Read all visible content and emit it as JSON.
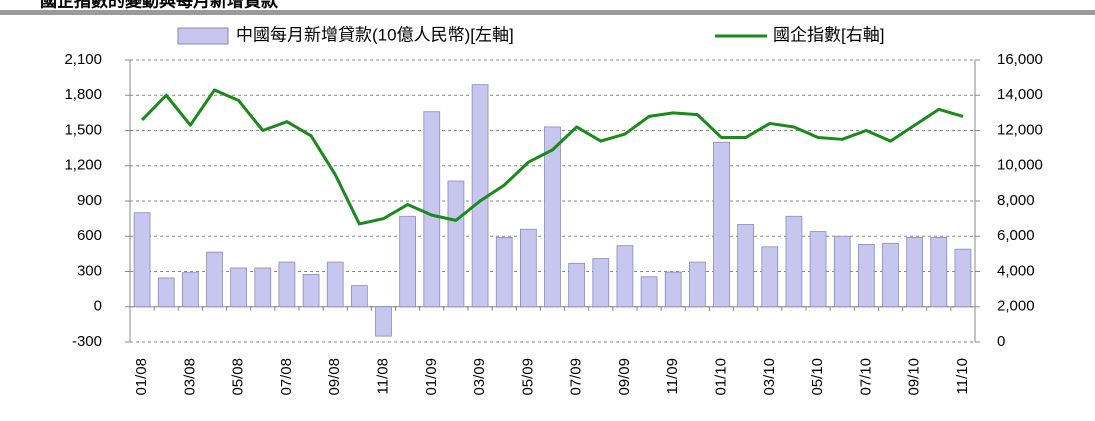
{
  "chart_data": {
    "type": "bar_line",
    "title": "國企指數的變動與每月新增貸款",
    "categories": [
      "01/08",
      null,
      "03/08",
      null,
      "05/08",
      null,
      "07/08",
      null,
      "09/08",
      null,
      "11/08",
      null,
      "01/09",
      null,
      "03/09",
      null,
      "05/09",
      null,
      "07/09",
      null,
      "09/09",
      null,
      "11/09",
      null,
      "01/10",
      null,
      "03/10",
      null,
      "05/10",
      null,
      "07/10",
      null,
      "09/10",
      null,
      "11/10"
    ],
    "series": [
      {
        "name": "中國每月新增貸款(10億人民幣)[左軸]",
        "type": "bar",
        "color": "#c6c6ef",
        "edge": "#8a8ab8",
        "axis": "y",
        "values": [
          800,
          245,
          290,
          465,
          330,
          330,
          380,
          275,
          380,
          180,
          -250,
          770,
          1660,
          1070,
          1890,
          590,
          660,
          1530,
          370,
          410,
          520,
          255,
          295,
          380,
          1400,
          700,
          510,
          770,
          640,
          600,
          530,
          540,
          590,
          590,
          490
        ]
      },
      {
        "name": "國企指數[右軸]",
        "type": "line",
        "color": "#1a8a1a",
        "axis": "y2",
        "values": [
          12600,
          14000,
          12300,
          14300,
          13700,
          12000,
          12500,
          11700,
          9500,
          6700,
          7000,
          7800,
          7200,
          6900,
          8000,
          8900,
          10200,
          10900,
          12200,
          11400,
          11800,
          12800,
          13000,
          12900,
          11600,
          11600,
          12400,
          12200,
          11600,
          11500,
          12000,
          11400,
          12300,
          13200,
          12800
        ]
      }
    ],
    "ylim": [
      -300,
      2100
    ],
    "yticks": [
      -300,
      0,
      300,
      600,
      900,
      {
        "value": 1200,
        "label": "1,200"
      },
      {
        "value": 1500,
        "label": "1,500"
      },
      {
        "value": 1800,
        "label": "1,800"
      },
      {
        "value": 2100,
        "label": "2,100"
      }
    ],
    "y2lim": [
      0,
      16000
    ],
    "y2ticks": [
      0,
      {
        "value": 2000,
        "label": "2,000"
      },
      {
        "value": 4000,
        "label": "4,000"
      },
      {
        "value": 6000,
        "label": "6,000"
      },
      {
        "value": 8000,
        "label": "8,000"
      },
      {
        "value": 10000,
        "label": "10,000"
      },
      {
        "value": 12000,
        "label": "12,000"
      },
      {
        "value": 14000,
        "label": "14,000"
      },
      {
        "value": 16000,
        "label": "16,000"
      }
    ],
    "grid": true,
    "legend": "top"
  }
}
